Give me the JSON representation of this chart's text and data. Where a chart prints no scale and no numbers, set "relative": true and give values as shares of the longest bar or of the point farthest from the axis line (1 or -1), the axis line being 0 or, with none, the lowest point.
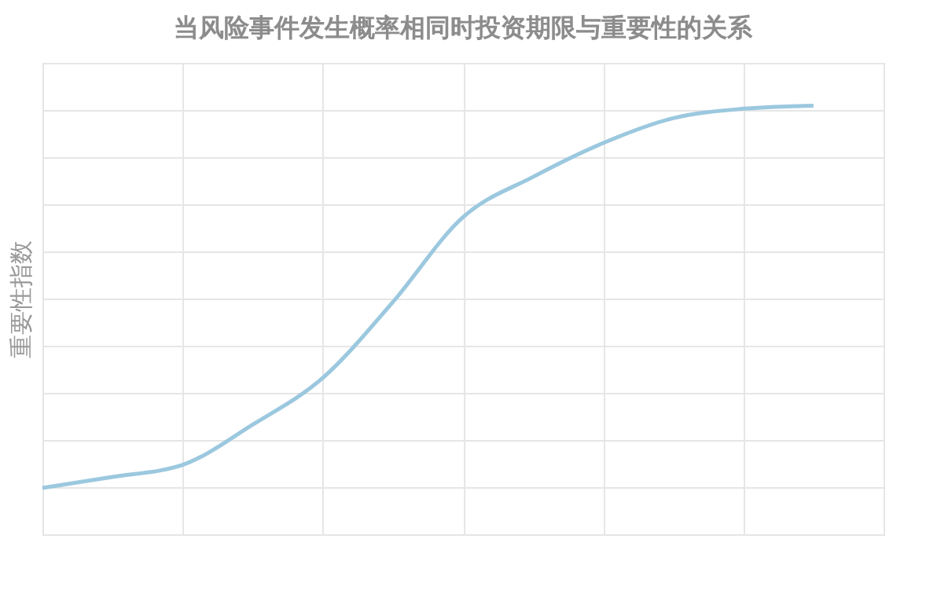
{
  "chart_data": {
    "type": "line",
    "title": "当风险事件发生概率相同时投资期限与重要性的关系",
    "ylabel": "重要性指数",
    "relative": true,
    "grid": true,
    "tick_labels": false,
    "categories": [
      null,
      null,
      null,
      null,
      null,
      null,
      null,
      null,
      null,
      null,
      null,
      null
    ],
    "series": [
      {
        "color": "#9bc8df",
        "values": [
          0.108,
          0.134,
          0.162,
          0.256,
          0.365,
          0.542,
          0.74,
          0.834,
          0.913,
          0.971,
          0.993,
          1
        ]
      }
    ]
  }
}
